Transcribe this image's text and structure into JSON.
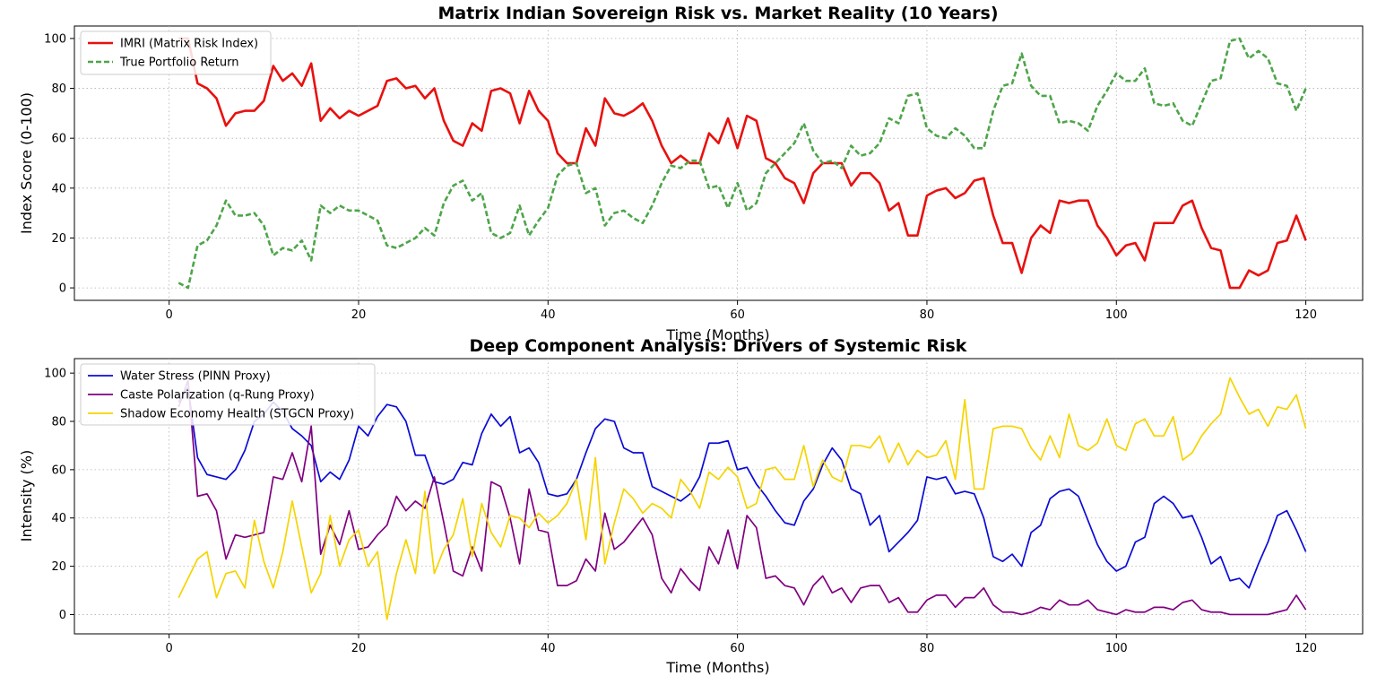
{
  "chart_data": [
    {
      "type": "line",
      "title": "Matrix Indian Sovereign Risk vs. Market Reality (10 Years)",
      "xlabel": "Time (Months)",
      "ylabel": "Index Score (0-100)",
      "xlim": [
        -10,
        126
      ],
      "ylim": [
        -5,
        105
      ],
      "xticks": [
        0,
        20,
        40,
        60,
        80,
        100,
        120
      ],
      "yticks": [
        0,
        20,
        40,
        60,
        80,
        100
      ],
      "grid": true,
      "legend_position": "top-left",
      "x": [
        1,
        2,
        3,
        4,
        5,
        6,
        7,
        8,
        9,
        10,
        11,
        12,
        13,
        14,
        15,
        16,
        17,
        18,
        19,
        20,
        21,
        22,
        23,
        24,
        25,
        26,
        27,
        28,
        29,
        30,
        31,
        32,
        33,
        34,
        35,
        36,
        37,
        38,
        39,
        40,
        41,
        42,
        43,
        44,
        45,
        46,
        47,
        48,
        49,
        50,
        51,
        52,
        53,
        54,
        55,
        56,
        57,
        58,
        59,
        60,
        61,
        62,
        63,
        64,
        65,
        66,
        67,
        68,
        69,
        70,
        71,
        72,
        73,
        74,
        75,
        76,
        77,
        78,
        79,
        80,
        81,
        82,
        83,
        84,
        85,
        86,
        87,
        88,
        89,
        90,
        91,
        92,
        93,
        94,
        95,
        96,
        97,
        98,
        99,
        100,
        101,
        102,
        103,
        104,
        105,
        106,
        107,
        108,
        109,
        110,
        111,
        112,
        113,
        114,
        115,
        116,
        117,
        118,
        119,
        120
      ],
      "series": [
        {
          "name": "IMRI (Matrix Risk Index)",
          "color": "#e8110f",
          "style": "solid",
          "values": [
            100,
            100,
            82,
            80,
            76,
            65,
            70,
            71,
            71,
            75,
            89,
            83,
            86,
            81,
            90,
            67,
            72,
            68,
            71,
            69,
            71,
            73,
            83,
            84,
            80,
            81,
            76,
            80,
            67,
            59,
            57,
            66,
            63,
            79,
            80,
            78,
            66,
            79,
            71,
            67,
            54,
            50,
            50,
            64,
            57,
            76,
            70,
            69,
            71,
            74,
            67,
            57,
            50,
            53,
            50,
            50,
            62,
            58,
            68,
            56,
            69,
            67,
            52,
            50,
            44,
            42,
            34,
            46,
            50,
            50,
            50,
            41,
            46,
            46,
            42,
            31,
            34,
            21,
            21,
            37,
            39,
            40,
            36,
            38,
            43,
            44,
            29,
            18,
            18,
            6,
            20,
            25,
            22,
            35,
            34,
            35,
            35,
            25,
            20,
            13,
            17,
            18,
            11,
            26,
            26,
            26,
            33,
            35,
            24,
            16,
            15,
            0,
            0,
            7,
            5,
            7,
            18,
            19,
            29,
            19
          ]
        },
        {
          "name": "True Portfolio Return",
          "color": "#4ea54a",
          "style": "dashed",
          "values": [
            2,
            0,
            17,
            19,
            25,
            35,
            29,
            29,
            30,
            25,
            13,
            16,
            15,
            19,
            11,
            33,
            30,
            33,
            31,
            31,
            29,
            27,
            17,
            16,
            18,
            20,
            24,
            21,
            34,
            41,
            43,
            35,
            38,
            22,
            20,
            22,
            33,
            21,
            27,
            32,
            45,
            49,
            50,
            38,
            40,
            25,
            30,
            31,
            28,
            26,
            33,
            42,
            49,
            48,
            51,
            51,
            40,
            41,
            32,
            42,
            31,
            34,
            46,
            50,
            54,
            58,
            66,
            55,
            50,
            51,
            48,
            57,
            53,
            54,
            58,
            68,
            66,
            77,
            78,
            64,
            61,
            60,
            64,
            61,
            56,
            56,
            71,
            81,
            82,
            94,
            81,
            77,
            77,
            66,
            67,
            66,
            63,
            73,
            79,
            86,
            83,
            83,
            88,
            74,
            73,
            74,
            67,
            65,
            74,
            83,
            84,
            99,
            100,
            92,
            95,
            92,
            82,
            81,
            71,
            80
          ]
        }
      ]
    },
    {
      "type": "line",
      "title": "Deep Component Analysis: Drivers of Systemic Risk",
      "xlabel": "Time (Months)",
      "ylabel": "Intensity (%)",
      "xlim": [
        -10,
        126
      ],
      "ylim": [
        -8,
        106
      ],
      "xticks": [
        0,
        20,
        40,
        60,
        80,
        100,
        120
      ],
      "yticks": [
        0,
        20,
        40,
        60,
        80,
        100
      ],
      "grid": true,
      "legend_position": "top-left",
      "x": [
        1,
        2,
        3,
        4,
        5,
        6,
        7,
        8,
        9,
        10,
        11,
        12,
        13,
        14,
        15,
        16,
        17,
        18,
        19,
        20,
        21,
        22,
        23,
        24,
        25,
        26,
        27,
        28,
        29,
        30,
        31,
        32,
        33,
        34,
        35,
        36,
        37,
        38,
        39,
        40,
        41,
        42,
        43,
        44,
        45,
        46,
        47,
        48,
        49,
        50,
        51,
        52,
        53,
        54,
        55,
        56,
        57,
        58,
        59,
        60,
        61,
        62,
        63,
        64,
        65,
        66,
        67,
        68,
        69,
        70,
        71,
        72,
        73,
        74,
        75,
        76,
        77,
        78,
        79,
        80,
        81,
        82,
        83,
        84,
        85,
        86,
        87,
        88,
        89,
        90,
        91,
        92,
        93,
        94,
        95,
        96,
        97,
        98,
        99,
        100,
        101,
        102,
        103,
        104,
        105,
        106,
        107,
        108,
        109,
        110,
        111,
        112,
        113,
        114,
        115,
        116,
        117,
        118,
        119,
        120
      ],
      "series": [
        {
          "name": "Water Stress (PINN Proxy)",
          "color": "#0b0bd6",
          "style": "solid",
          "values": [
            88,
            94,
            65,
            58,
            57,
            56,
            60,
            68,
            80,
            83,
            88,
            84,
            77,
            74,
            70,
            55,
            59,
            56,
            64,
            78,
            74,
            82,
            87,
            86,
            80,
            66,
            66,
            55,
            54,
            56,
            63,
            62,
            75,
            83,
            78,
            82,
            67,
            69,
            63,
            50,
            49,
            50,
            56,
            67,
            77,
            81,
            80,
            69,
            67,
            67,
            53,
            51,
            49,
            47,
            50,
            57,
            71,
            71,
            72,
            60,
            61,
            54,
            49,
            43,
            38,
            37,
            47,
            52,
            62,
            69,
            64,
            52,
            50,
            37,
            41,
            26,
            30,
            34,
            39,
            57,
            56,
            57,
            50,
            51,
            50,
            40,
            24,
            22,
            25,
            20,
            34,
            37,
            48,
            51,
            52,
            49,
            39,
            29,
            22,
            18,
            20,
            30,
            32,
            46,
            49,
            46,
            40,
            41,
            32,
            21,
            24,
            14,
            15,
            11,
            21,
            30,
            41,
            43,
            35,
            26
          ]
        },
        {
          "name": "Caste Polarization (q-Rung Proxy)",
          "color": "#800080",
          "style": "solid",
          "values": [
            86,
            97,
            49,
            50,
            43,
            23,
            33,
            32,
            33,
            34,
            57,
            56,
            67,
            55,
            78,
            25,
            37,
            29,
            43,
            27,
            28,
            33,
            37,
            49,
            43,
            47,
            44,
            57,
            38,
            18,
            16,
            28,
            18,
            55,
            53,
            40,
            21,
            52,
            35,
            34,
            12,
            12,
            14,
            23,
            18,
            42,
            27,
            30,
            35,
            40,
            33,
            15,
            9,
            19,
            14,
            10,
            28,
            21,
            35,
            19,
            41,
            36,
            15,
            16,
            12,
            11,
            4,
            12,
            16,
            9,
            11,
            5,
            11,
            12,
            12,
            5,
            7,
            1,
            1,
            6,
            8,
            8,
            3,
            7,
            7,
            11,
            4,
            1,
            1,
            0,
            1,
            3,
            2,
            6,
            4,
            4,
            6,
            2,
            1,
            0,
            2,
            1,
            1,
            3,
            3,
            2,
            5,
            6,
            2,
            1,
            1,
            0,
            0,
            0,
            0,
            0,
            1,
            2,
            8,
            2
          ]
        },
        {
          "name": "Shadow Economy Health (STGCN Proxy)",
          "color": "#f5d400",
          "style": "solid",
          "values": [
            7,
            15,
            23,
            26,
            7,
            17,
            18,
            11,
            39,
            22,
            11,
            26,
            47,
            28,
            9,
            17,
            41,
            20,
            31,
            35,
            20,
            26,
            -2,
            17,
            31,
            17,
            51,
            17,
            27,
            33,
            48,
            24,
            46,
            34,
            28,
            41,
            40,
            36,
            42,
            38,
            41,
            46,
            56,
            31,
            65,
            21,
            38,
            52,
            48,
            42,
            46,
            44,
            40,
            56,
            51,
            44,
            59,
            56,
            61,
            57,
            44,
            46,
            60,
            61,
            56,
            56,
            70,
            53,
            64,
            57,
            55,
            70,
            70,
            69,
            74,
            63,
            71,
            62,
            68,
            65,
            66,
            72,
            56,
            89,
            52,
            52,
            77,
            78,
            78,
            77,
            69,
            64,
            74,
            65,
            83,
            70,
            68,
            71,
            81,
            70,
            68,
            79,
            81,
            74,
            74,
            82,
            64,
            67,
            74,
            79,
            83,
            98,
            90,
            83,
            85,
            78,
            86,
            85,
            91,
            77
          ]
        }
      ]
    }
  ]
}
